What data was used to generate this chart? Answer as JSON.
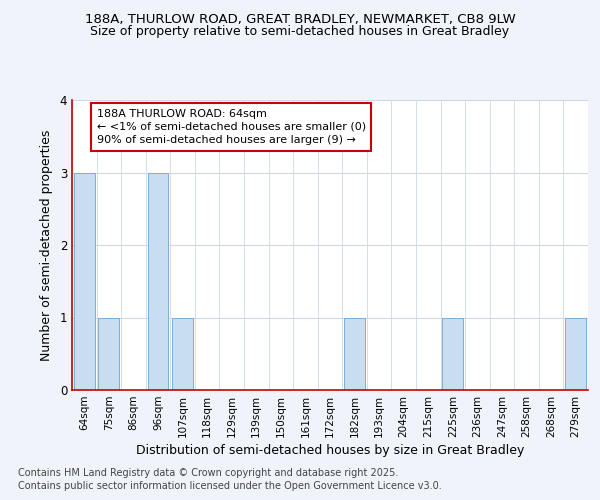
{
  "title_line1": "188A, THURLOW ROAD, GREAT BRADLEY, NEWMARKET, CB8 9LW",
  "title_line2": "Size of property relative to semi-detached houses in Great Bradley",
  "categories": [
    "64sqm",
    "75sqm",
    "86sqm",
    "96sqm",
    "107sqm",
    "118sqm",
    "129sqm",
    "139sqm",
    "150sqm",
    "161sqm",
    "172sqm",
    "182sqm",
    "193sqm",
    "204sqm",
    "215sqm",
    "225sqm",
    "236sqm",
    "247sqm",
    "258sqm",
    "268sqm",
    "279sqm"
  ],
  "values": [
    3,
    1,
    0,
    3,
    1,
    0,
    0,
    0,
    0,
    0,
    0,
    1,
    0,
    0,
    0,
    1,
    0,
    0,
    0,
    0,
    1
  ],
  "highlight_index": 0,
  "highlight_label": "188A THURLOW ROAD: 64sqm",
  "highlight_line2": "← <1% of semi-detached houses are smaller (0)",
  "highlight_line3": "90% of semi-detached houses are larger (9) →",
  "bar_color": "#c8ddf0",
  "bar_edge_color": "#7aafd4",
  "xlabel": "Distribution of semi-detached houses by size in Great Bradley",
  "ylabel": "Number of semi-detached properties",
  "ylim": [
    0,
    4
  ],
  "yticks": [
    0,
    1,
    2,
    3,
    4
  ],
  "footer_line1": "Contains HM Land Registry data © Crown copyright and database right 2025.",
  "footer_line2": "Contains public sector information licensed under the Open Government Licence v3.0.",
  "bg_color": "#f0f4fa",
  "plot_bg_color": "#ffffff",
  "grid_color": "#d0d8e8",
  "annotation_box_edge": "#cc0000",
  "title_fontsize": 9.5,
  "subtitle_fontsize": 9,
  "axis_label_fontsize": 9,
  "tick_fontsize": 7.5,
  "footer_fontsize": 7,
  "annotation_fontsize": 8
}
